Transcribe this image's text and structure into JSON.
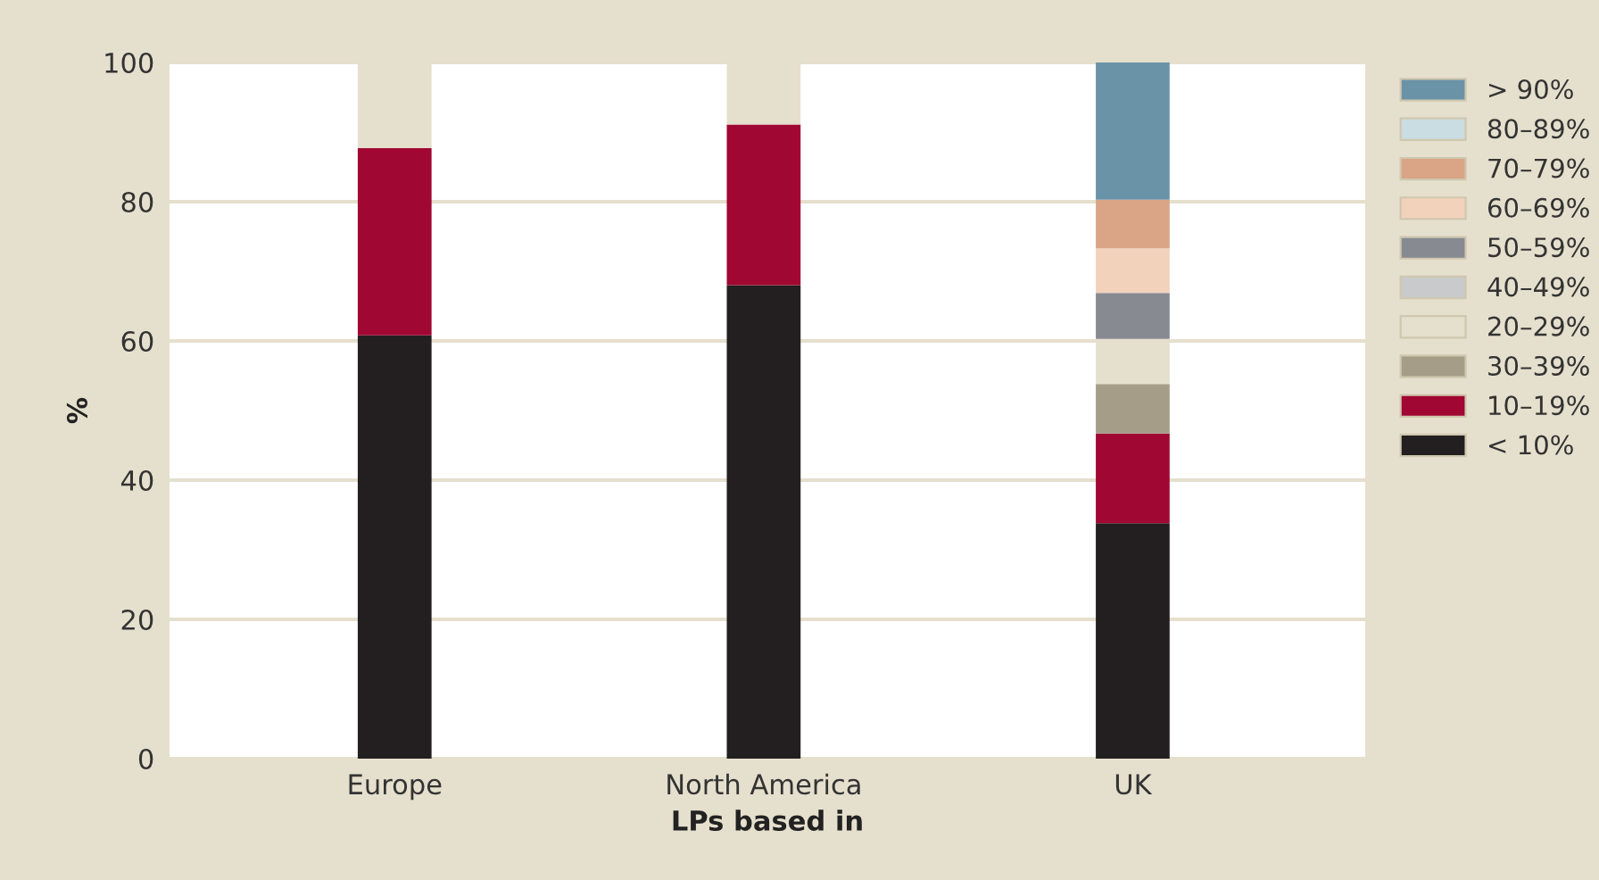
{
  "chart_data": {
    "type": "bar",
    "stacked": true,
    "xlabel": "LPs based in",
    "ylabel": "%",
    "categories": [
      "Europe",
      "North America",
      "UK"
    ],
    "series": [
      {
        "name": "< 10%",
        "color": "#231f20",
        "values": [
          60.8,
          68.0,
          33.8
        ]
      },
      {
        "name": "10–19%",
        "color": "#a00733",
        "values": [
          26.9,
          23.1,
          12.9
        ]
      },
      {
        "name": "30–39%",
        "color": "#a59d88",
        "values": [
          0,
          0,
          7.1
        ]
      },
      {
        "name": "20–29%",
        "color": "#e5dfcd",
        "values": [
          12.3,
          8.9,
          6.5
        ]
      },
      {
        "name": "40–49%",
        "color": "#c8cacb",
        "values": [
          0,
          0,
          0
        ]
      },
      {
        "name": "50–59%",
        "color": "#878a91",
        "values": [
          0,
          0,
          6.6
        ]
      },
      {
        "name": "60–69%",
        "color": "#f2d2bb",
        "values": [
          0,
          0,
          6.4
        ]
      },
      {
        "name": "70–79%",
        "color": "#d9a586",
        "values": [
          0,
          0,
          7.0
        ]
      },
      {
        "name": "80–89%",
        "color": "#c9dde2",
        "values": [
          0,
          0,
          0
        ]
      },
      {
        "name": "> 90%",
        "color": "#6b93a8",
        "values": [
          0,
          0,
          19.7
        ]
      }
    ],
    "ylim": [
      0,
      100
    ],
    "yticks": [
      0,
      20,
      40,
      60,
      80,
      100
    ],
    "grid": "y",
    "legend": "right"
  }
}
